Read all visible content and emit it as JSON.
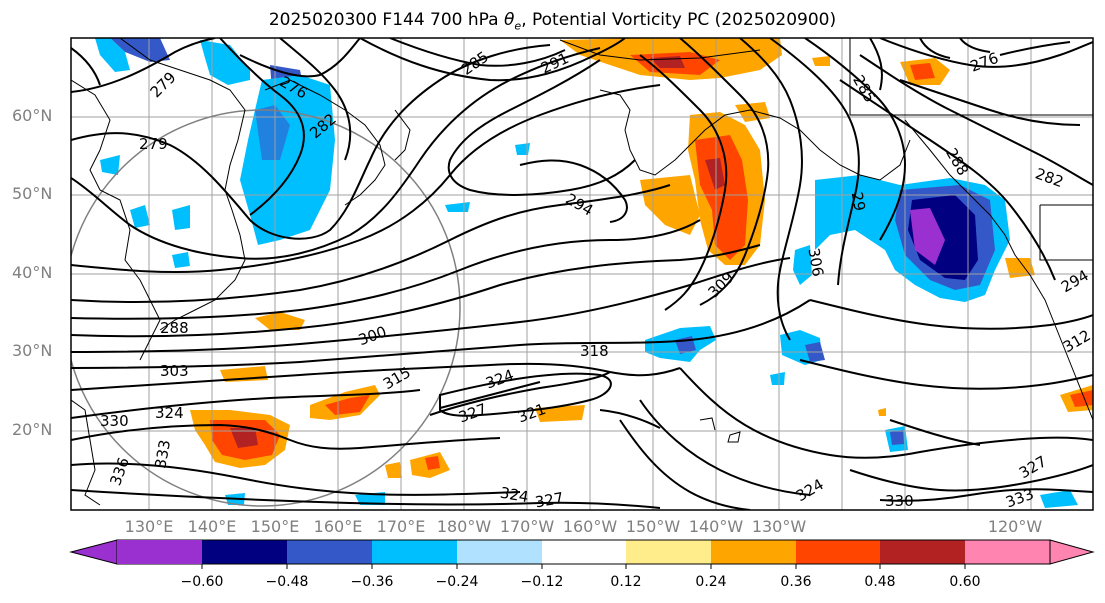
{
  "title_main": "2025020300 F144 700 hPa ",
  "title_theta": "θ",
  "title_theta_sub": "e",
  "title_rest": ", Potential Vorticity PC (2025020900)",
  "lat_labels": [
    "60°N",
    "50°N",
    "40°N",
    "30°N",
    "20°N"
  ],
  "lon_labels": [
    "130°E",
    "140°E",
    "150°E",
    "160°E",
    "170°E",
    "180°W",
    "170°W",
    "160°W",
    "150°W",
    "140°W",
    "130°W",
    "120°W"
  ],
  "colorbar": {
    "colors": [
      "#9b30d0",
      "#000080",
      "#3558c8",
      "#00bfff",
      "#b0e2ff",
      "#ffffff",
      "#ffec8b",
      "#ffa500",
      "#ff4500",
      "#b22222",
      "#ff85b0"
    ],
    "tick_labels": [
      "−0.60",
      "−0.48",
      "−0.36",
      "−0.24",
      "−0.12",
      "0.12",
      "0.24",
      "0.36",
      "0.48",
      "0.60"
    ]
  },
  "contour_labels": [
    "279",
    "276",
    "282",
    "279",
    "285",
    "291",
    "276",
    "285",
    "288",
    "282",
    "29",
    "294",
    "288",
    "300",
    "303",
    "315",
    "309",
    "306",
    "294",
    "324",
    "327",
    "321",
    "318",
    "312",
    "324",
    "330",
    "333",
    "336",
    "324",
    "327",
    "324",
    "330",
    "327",
    "333"
  ]
}
